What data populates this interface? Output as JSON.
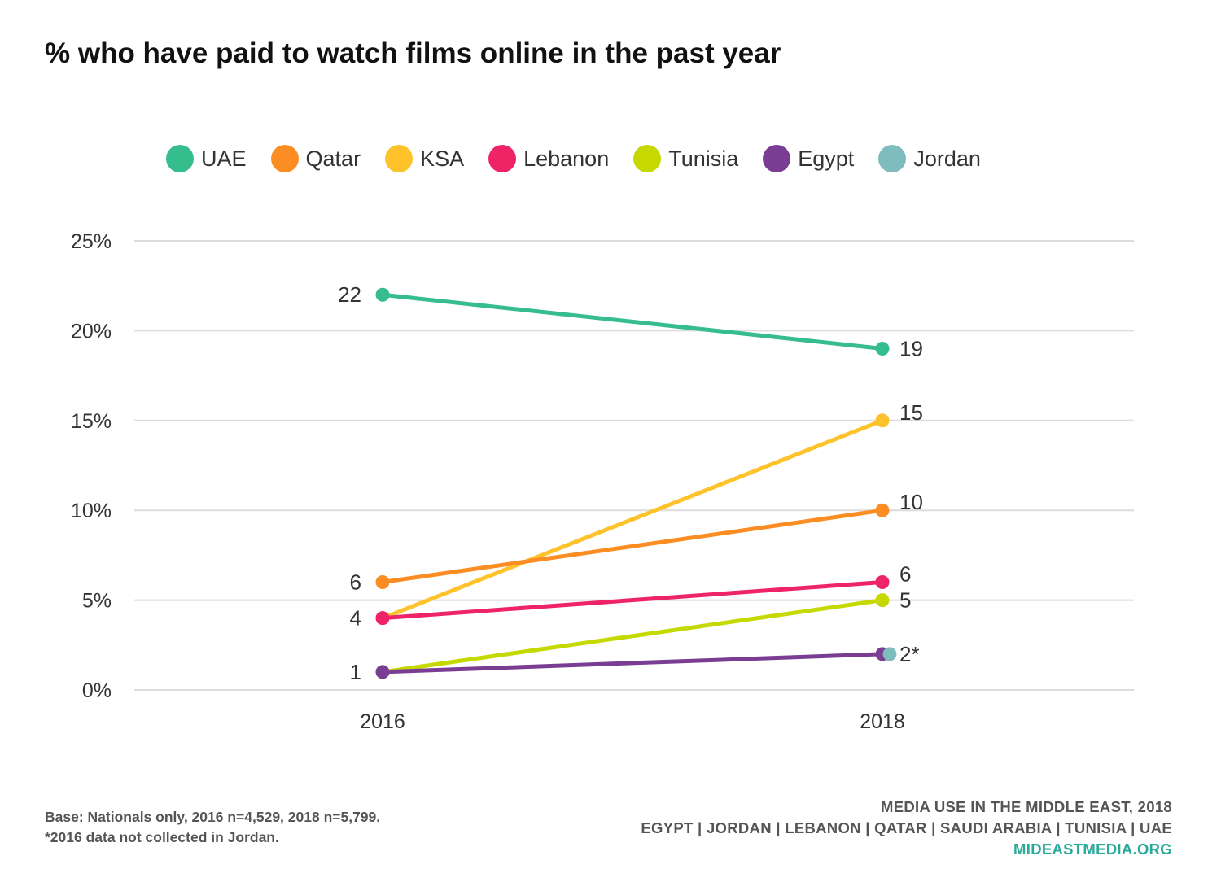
{
  "title": "% who have paid to watch films online in the past year",
  "colors": {
    "UAE": "#36bd8d",
    "Qatar": "#fb8d22",
    "KSA": "#fec22b",
    "Lebanon": "#ee2467",
    "Tunisia": "#c5d900",
    "Egypt": "#7a3d94",
    "Jordan": "#7fbcbd",
    "gridline": "#dcdcdc",
    "text": "#333333"
  },
  "legend": [
    {
      "label": "UAE",
      "color": "#36bd8d"
    },
    {
      "label": "Qatar",
      "color": "#fb8d22"
    },
    {
      "label": "KSA",
      "color": "#fec22b"
    },
    {
      "label": "Lebanon",
      "color": "#ee2467"
    },
    {
      "label": "Tunisia",
      "color": "#c5d900"
    },
    {
      "label": "Egypt",
      "color": "#7a3d94"
    },
    {
      "label": "Jordan",
      "color": "#7fbcbd"
    }
  ],
  "chart_data": {
    "type": "line",
    "title": "% who have paid to watch films online in the past year",
    "x": [
      "2016",
      "2018"
    ],
    "ylim": [
      0,
      25
    ],
    "yticks": [
      "0%",
      "5%",
      "10%",
      "15%",
      "20%",
      "25%"
    ],
    "grid": true,
    "legend_position": "top",
    "series": [
      {
        "name": "UAE",
        "color": "#36bd8d",
        "values": [
          22,
          19
        ],
        "labels": [
          "22",
          "19"
        ]
      },
      {
        "name": "KSA",
        "color": "#fec22b",
        "values": [
          4,
          15
        ],
        "labels": [
          "",
          "15"
        ]
      },
      {
        "name": "Qatar",
        "color": "#fb8d22",
        "values": [
          6,
          10
        ],
        "labels": [
          "6",
          "10"
        ]
      },
      {
        "name": "Lebanon",
        "color": "#ee2467",
        "values": [
          4,
          6
        ],
        "labels": [
          "4",
          "6"
        ]
      },
      {
        "name": "Tunisia",
        "color": "#c5d900",
        "values": [
          1,
          5
        ],
        "labels": [
          "",
          "5"
        ]
      },
      {
        "name": "Egypt",
        "color": "#7a3d94",
        "values": [
          1,
          2
        ],
        "labels": [
          "1",
          ""
        ]
      },
      {
        "name": "Jordan",
        "color": "#7fbcbd",
        "values": [
          null,
          2
        ],
        "labels": [
          "",
          "2*"
        ]
      }
    ]
  },
  "footnote": {
    "base": "Base: Nationals only, 2016 n=4,529, 2018 n=5,799.",
    "note": "*2016 data not collected in Jordan."
  },
  "source": {
    "line1": "MEDIA USE IN THE MIDDLE EAST, 2018",
    "line2": "EGYPT | JORDAN | LEBANON | QATAR | SAUDI ARABIA | TUNISIA | UAE",
    "url": "MIDEASTMEDIA.ORG"
  }
}
